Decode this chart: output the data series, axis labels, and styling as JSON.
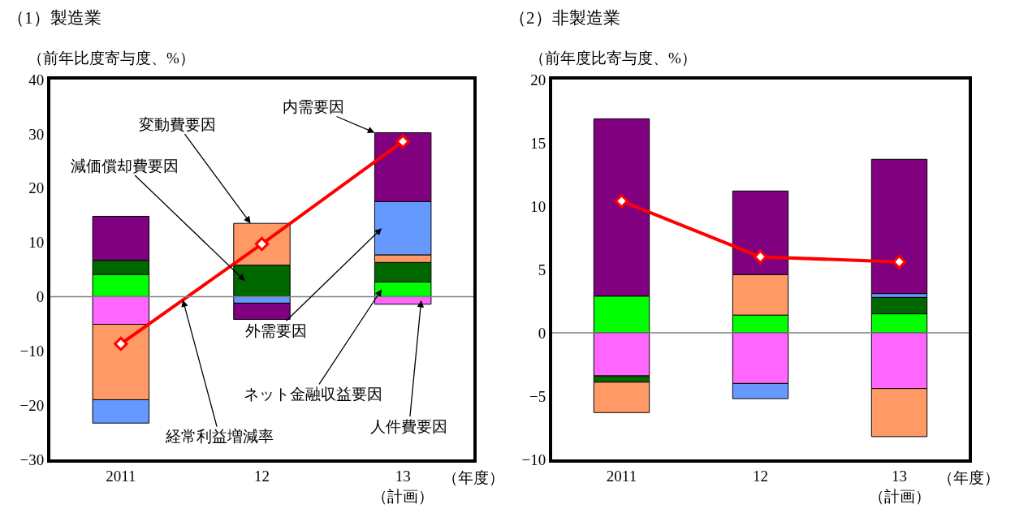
{
  "chart_data": [
    {
      "type": "bar",
      "stacked": true,
      "title": "（1）製造業",
      "ylabel": "（前年比度寄与度、%）",
      "xlabel": "（年度）",
      "categories": [
        "2011",
        "12",
        "13\n（計画）"
      ],
      "ylim": [
        -30,
        40
      ],
      "yticks": [
        -30,
        -20,
        -10,
        0,
        10,
        20,
        30,
        40
      ],
      "ref_lines": [
        {
          "axis": "y",
          "value": 0,
          "color": "#808080"
        }
      ],
      "series": [
        {
          "name": "ネット金融収益要因",
          "color": "#00ff00",
          "values": [
            4.1,
            null,
            2.7
          ]
        },
        {
          "name": "人件費要因",
          "color": "#ff66ff",
          "values": [
            -5.1,
            null,
            -1.4
          ]
        },
        {
          "name": "減価償却費要因",
          "color": "#006600",
          "values": [
            2.6,
            5.8,
            3.6
          ]
        },
        {
          "name": "変動費要因",
          "color": "#ff9966",
          "values": [
            -13.9,
            7.7,
            1.4
          ]
        },
        {
          "name": "外需要因",
          "color": "#6699ff",
          "values": [
            -4.3,
            -1.2,
            9.8
          ]
        },
        {
          "name": "内需要因",
          "color": "#800080",
          "values": [
            8.1,
            -3.0,
            12.7
          ]
        },
        {
          "name": "経常利益増減率",
          "type": "line",
          "color": "#ff0000",
          "marker": "diamond",
          "values": [
            -8.7,
            9.7,
            28.6
          ]
        }
      ]
    },
    {
      "type": "bar",
      "stacked": true,
      "title": "（2）非製造業",
      "ylabel": "（前年度比寄与度、%）",
      "xlabel": "（年度）",
      "categories": [
        "2011",
        "12",
        "13\n（計画）"
      ],
      "ylim": [
        -10,
        20
      ],
      "yticks": [
        -10,
        -5,
        0,
        5,
        10,
        15,
        20
      ],
      "ref_lines": [
        {
          "axis": "y",
          "value": 0,
          "color": "#808080"
        }
      ],
      "series": [
        {
          "color": "#00ff00",
          "values": [
            2.9,
            1.4,
            1.5
          ]
        },
        {
          "color": "#ff66ff",
          "values": [
            -3.4,
            -4.0,
            -4.4
          ]
        },
        {
          "color": "#006600",
          "values": [
            -0.5,
            null,
            1.3
          ]
        },
        {
          "color": "#ff9966",
          "values": [
            -2.4,
            3.2,
            -3.8
          ]
        },
        {
          "color": "#6699ff",
          "values": [
            null,
            -1.2,
            0.3
          ]
        },
        {
          "color": "#800080",
          "values": [
            14.0,
            6.6,
            10.6
          ]
        },
        {
          "type": "line",
          "color": "#ff0000",
          "marker": "diamond",
          "values": [
            10.4,
            6.0,
            5.6
          ]
        }
      ]
    }
  ]
}
